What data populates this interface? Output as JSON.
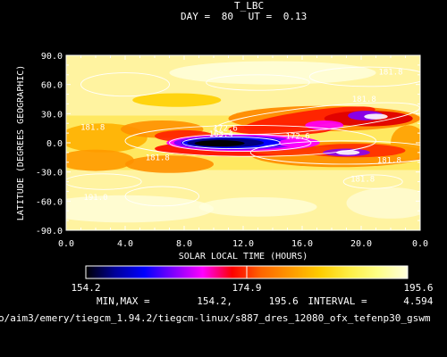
{
  "chart_data": {
    "type": "heatmap",
    "title": "T_LBC",
    "day_label": "DAY =",
    "day": "80",
    "ut_label": "UT =",
    "ut": "0.13",
    "xlabel": "SOLAR LOCAL TIME (HOURS)",
    "ylabel": "LATITUDE (DEGREES GEOGRAPHIC)",
    "xlim": [
      0,
      24
    ],
    "ylim": [
      -90,
      90
    ],
    "x_ticks": [
      "0.0",
      "4.0",
      "8.0",
      "12.0",
      "16.0",
      "20.0",
      "0.0"
    ],
    "y_ticks": [
      "90.0",
      "60.0",
      "30.0",
      "0.0",
      "-30.0",
      "-60.0",
      "-90.0"
    ],
    "colorbar": {
      "min_label": "154.2",
      "mid_label": "174.9",
      "max_label": "195.6",
      "min": 154.2,
      "max": 195.6,
      "colors": [
        "#000000",
        "#000099",
        "#0000ff",
        "#8000ff",
        "#ff00ff",
        "#ff0000",
        "#ff6600",
        "#ff9900",
        "#ffcc00",
        "#ffee44",
        "#ffff88",
        "#ffffdd"
      ]
    },
    "stats_label": "MIN,MAX =",
    "min_value": "154.2,",
    "max_value": "195.6",
    "interval_label": "INTERVAL =",
    "interval": "4.594",
    "contour_labels": [
      {
        "text": "181.8",
        "lt": 22.0,
        "lat": 73
      },
      {
        "text": "181.8",
        "lt": 20.2,
        "lat": 45
      },
      {
        "text": "181.8",
        "lt": 1.8,
        "lat": 16
      },
      {
        "text": "172.6",
        "lt": 10.8,
        "lat": 15
      },
      {
        "text": "163.4",
        "lt": 10.5,
        "lat": 9
      },
      {
        "text": "172.6",
        "lt": 15.7,
        "lat": 7
      },
      {
        "text": "181.8",
        "lt": 6.2,
        "lat": -15
      },
      {
        "text": "181.8",
        "lt": 21.9,
        "lat": -18
      },
      {
        "text": "181.8",
        "lt": 20.1,
        "lat": -37
      },
      {
        "text": "191.0",
        "lt": 2.0,
        "lat": -56
      }
    ],
    "footer_path": "o/aim3/emery/tiegcm_1.94.2/tiegcm-linux/s887_dres_12080_ofx_tefenp30_gswm"
  }
}
